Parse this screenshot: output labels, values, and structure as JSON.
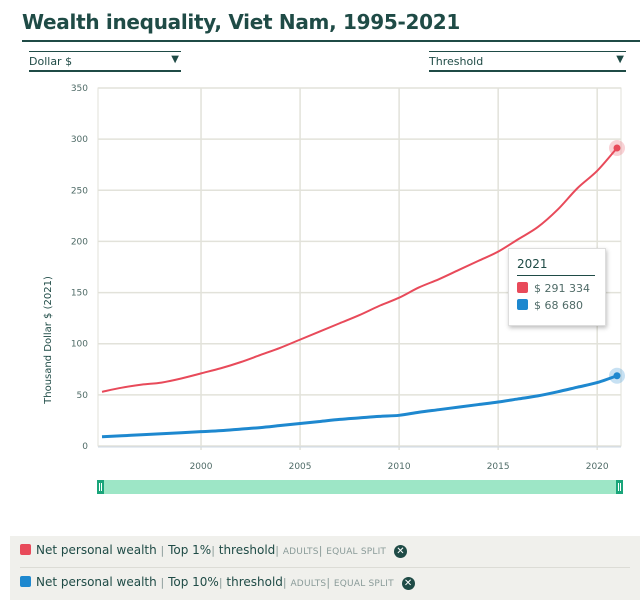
{
  "title": "Wealth inequality, Viet Nam, 1995-2021",
  "controls": {
    "unit_select": {
      "value": "Dollar $"
    },
    "metric_select": {
      "value": "Threshold"
    }
  },
  "tooltip": {
    "year": "2021",
    "rows": [
      {
        "color": "#e84a5a",
        "value": "$ 291 334"
      },
      {
        "color": "#1e88cf",
        "value": "$ 68 680"
      }
    ]
  },
  "legend": [
    {
      "color": "#e84a5a",
      "main": "Net personal wealth",
      "group": "Top 1%",
      "measure": "threshold",
      "pop": "ADULTS",
      "split": "EQUAL SPLIT",
      "close_icon": "close-circle-icon"
    },
    {
      "color": "#1e88cf",
      "main": "Net personal wealth",
      "group": "Top 10%",
      "measure": "threshold",
      "pop": "ADULTS",
      "split": "EQUAL SPLIT",
      "close_icon": "close-circle-icon"
    }
  ],
  "separators": {
    "bar": "|"
  },
  "chart_data": {
    "type": "line",
    "title": "Wealth inequality, Viet Nam, 1995-2021",
    "xlabel": "",
    "ylabel": "Thousand Dollar $ (2021)",
    "xlim": [
      1995,
      2021
    ],
    "ylim": [
      0,
      350
    ],
    "x_ticks": [
      2000,
      2005,
      2010,
      2015,
      2020
    ],
    "y_ticks": [
      0,
      50,
      100,
      150,
      200,
      250,
      300,
      350
    ],
    "grid": true,
    "x": [
      1995,
      1996,
      1997,
      1998,
      1999,
      2000,
      2001,
      2002,
      2003,
      2004,
      2005,
      2006,
      2007,
      2008,
      2009,
      2010,
      2011,
      2012,
      2013,
      2014,
      2015,
      2016,
      2017,
      2018,
      2019,
      2020,
      2021
    ],
    "series": [
      {
        "name": "Net personal wealth | Top 1% | threshold | ADULTS | EQUAL SPLIT",
        "color": "#e84a5a",
        "values": [
          53,
          57,
          60,
          62,
          66,
          71,
          76,
          82,
          89,
          96,
          104,
          112,
          120,
          128,
          137,
          145,
          155,
          163,
          172,
          181,
          190,
          202,
          214,
          231,
          252,
          269,
          291.334
        ]
      },
      {
        "name": "Net personal wealth | Top 10% | threshold | ADULTS | EQUAL SPLIT",
        "color": "#1e88cf",
        "values": [
          9,
          10,
          11,
          12,
          13,
          14,
          15,
          16.5,
          18,
          20,
          22,
          24,
          26,
          27.5,
          29,
          30,
          33,
          35.5,
          38,
          40.5,
          43,
          46,
          49,
          53,
          57.5,
          62,
          68.68
        ]
      }
    ],
    "highlight_x": 2021
  }
}
